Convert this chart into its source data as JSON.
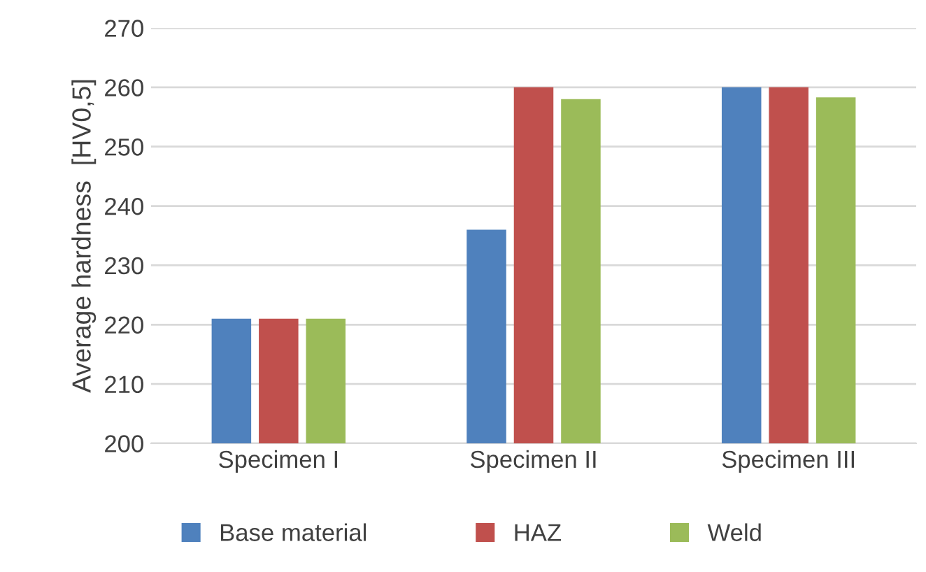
{
  "chart_data": {
    "type": "bar",
    "ylabel": "Average hardness  [HV0,5]",
    "categories": [
      "Specimen I",
      "Specimen II",
      "Specimen III"
    ],
    "series": [
      {
        "name": "Base material",
        "color": "#4f81bd",
        "values": [
          221,
          236,
          260
        ]
      },
      {
        "name": "HAZ",
        "color": "#c0504d",
        "values": [
          221,
          260,
          260
        ]
      },
      {
        "name": "Weld",
        "color": "#9bbb59",
        "values": [
          221,
          258,
          258.3
        ]
      }
    ],
    "ylim": [
      200,
      270
    ],
    "yticks": [
      200,
      210,
      220,
      230,
      240,
      250,
      260,
      270
    ],
    "grid": "y",
    "legend": "bottom"
  }
}
